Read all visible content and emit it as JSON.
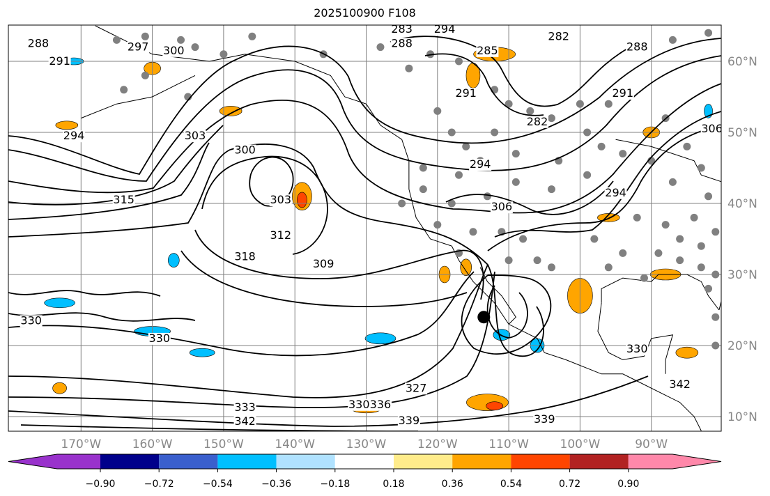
{
  "title": "2025100900 F108",
  "map": {
    "lon_labels": [
      "170°W",
      "160°W",
      "150°W",
      "140°W",
      "130°W",
      "120°W",
      "110°W",
      "100°W",
      "90°W"
    ],
    "lon_values": [
      -170,
      -160,
      -150,
      -140,
      -130,
      -120,
      -110,
      -100,
      -90
    ],
    "lat_labels": [
      "60°N",
      "50°N",
      "40°N",
      "30°N",
      "20°N",
      "10°N"
    ],
    "lat_values": [
      60,
      50,
      40,
      30,
      20,
      10
    ],
    "extent": {
      "lon": [
        -180,
        -80
      ],
      "lat": [
        8,
        65
      ]
    },
    "contour_labels": [
      "288",
      "291",
      "294",
      "297",
      "300",
      "303",
      "315",
      "300",
      "303",
      "312",
      "309",
      "318",
      "330",
      "330",
      "333",
      "342",
      "330",
      "336",
      "327",
      "339",
      "339",
      "306",
      "294",
      "282",
      "282",
      "288",
      "291",
      "306",
      "294",
      "291",
      "288",
      "283",
      "294",
      "285",
      "330",
      "342"
    ],
    "contour_color": "#000000",
    "coastline_color": "#000000",
    "gridline_color": "#808080",
    "station_dot_color": "#808080"
  },
  "colorbar": {
    "colors": [
      "#9932cc",
      "#00008b",
      "#3a5fcd",
      "#00bfff",
      "#b0e2ff",
      "#ffffff",
      "#ffec8b",
      "#ffa500",
      "#ff4500",
      "#b22222",
      "#ff88aa"
    ],
    "tick_labels": [
      "−0.90",
      "−0.72",
      "−0.54",
      "−0.36",
      "−0.18",
      "0.18",
      "0.36",
      "0.54",
      "0.72",
      "0.90"
    ],
    "tick_values": [
      -0.9,
      -0.72,
      -0.54,
      -0.36,
      -0.18,
      0.18,
      0.36,
      0.54,
      0.72,
      0.9
    ],
    "extend": "both"
  }
}
